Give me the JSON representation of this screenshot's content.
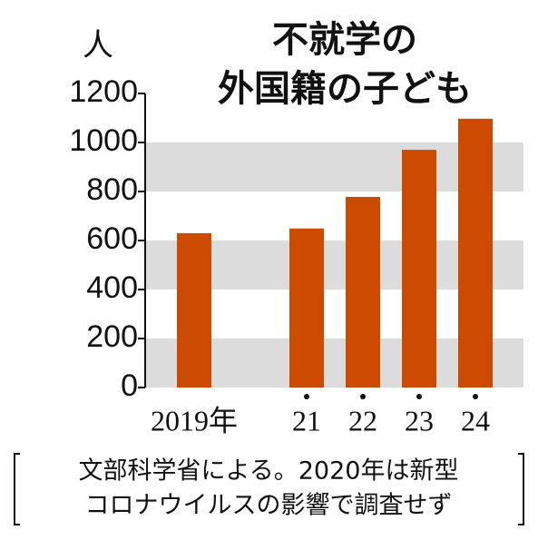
{
  "chart_data": {
    "type": "bar",
    "title_lines": [
      "不就学の",
      "外国籍の子ども"
    ],
    "y_unit": "人",
    "categories": [
      "2019年",
      null,
      "21",
      "22",
      "23",
      "24"
    ],
    "values": [
      630,
      null,
      649,
      778,
      970,
      1097
    ],
    "color": "#cc4b00",
    "ylim": [
      0,
      1200
    ],
    "yticks": [
      0,
      200,
      400,
      600,
      800,
      1000,
      1200
    ],
    "grid": "bands",
    "band_color": "#dcdcdc",
    "note_lines": [
      "文部科学省による。2020年は新型",
      "コロナウイルスの影響で調査せず"
    ]
  }
}
